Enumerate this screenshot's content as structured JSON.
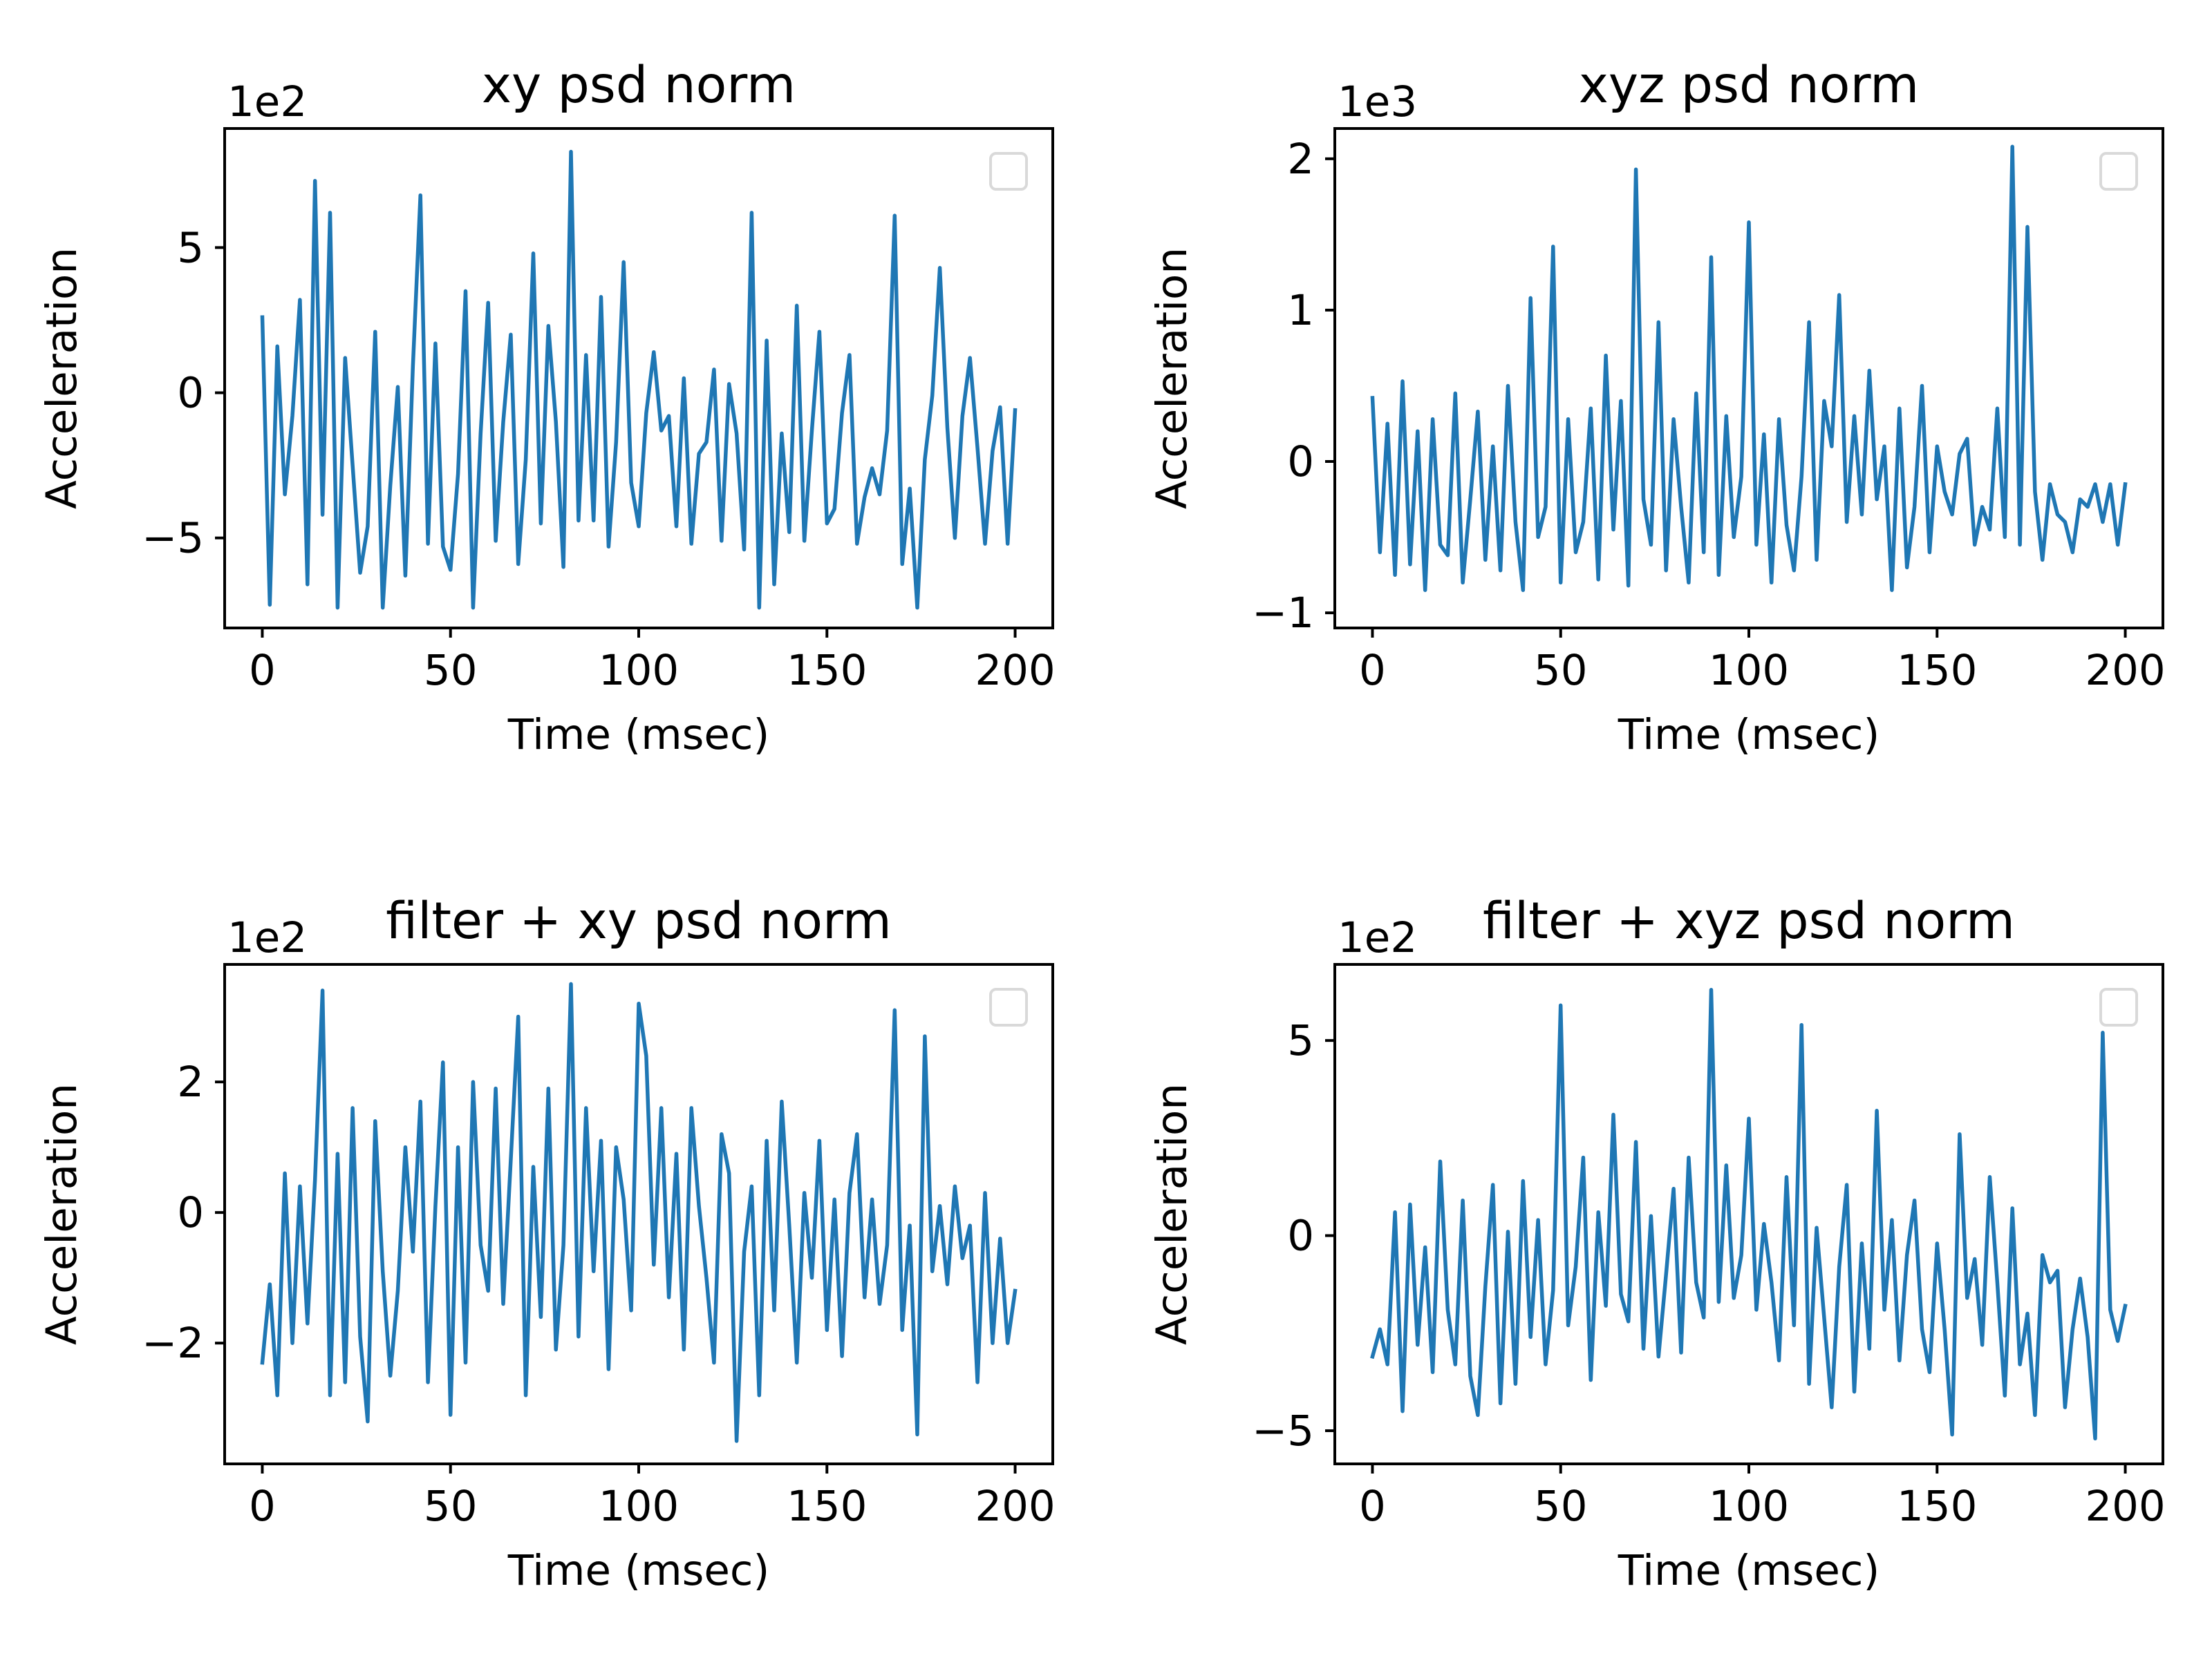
{
  "chart_data": [
    {
      "type": "line",
      "title": "xy psd norm",
      "xlabel": "Time (msec)",
      "ylabel": "Acceleration",
      "offset_text": "1e2",
      "xlim": [
        -10,
        210
      ],
      "ylim": [
        -8.1,
        9.1
      ],
      "xticks": [
        0,
        50,
        100,
        150,
        200
      ],
      "xtick_labels": [
        "0",
        "50",
        "100",
        "150",
        "200"
      ],
      "yticks": [
        -5,
        0,
        5
      ],
      "ytick_labels": [
        "−5",
        "0",
        "5"
      ],
      "legend": "top-right (empty)",
      "grid": false,
      "color": "#1f77b4",
      "x": [
        0,
        2,
        4,
        6,
        8,
        10,
        12,
        14,
        16,
        18,
        20,
        22,
        24,
        26,
        28,
        30,
        32,
        34,
        36,
        38,
        40,
        42,
        44,
        46,
        48,
        50,
        52,
        54,
        56,
        58,
        60,
        62,
        64,
        66,
        68,
        70,
        72,
        74,
        76,
        78,
        80,
        82,
        84,
        86,
        88,
        90,
        92,
        94,
        96,
        98,
        100,
        102,
        104,
        106,
        108,
        110,
        112,
        114,
        116,
        118,
        120,
        122,
        124,
        126,
        128,
        130,
        132,
        134,
        136,
        138,
        140,
        142,
        144,
        146,
        148,
        150,
        152,
        154,
        156,
        158,
        160,
        162,
        164,
        166,
        168,
        170,
        172,
        174,
        176,
        178,
        180,
        182,
        184,
        186,
        188,
        190,
        192,
        194,
        196,
        198,
        200
      ],
      "y": [
        2.6,
        -7.3,
        1.6,
        -3.5,
        -0.8,
        3.2,
        -6.6,
        7.3,
        -4.2,
        6.2,
        -7.4,
        1.2,
        -2.5,
        -6.2,
        -4.6,
        2.1,
        -7.4,
        -3.2,
        0.2,
        -6.3,
        0.9,
        6.8,
        -5.2,
        1.7,
        -5.3,
        -6.1,
        -2.8,
        3.5,
        -7.4,
        -1.4,
        3.1,
        -5.1,
        -1.0,
        2.0,
        -5.9,
        -2.3,
        4.8,
        -4.5,
        2.3,
        -1.0,
        -6.0,
        8.3,
        -4.4,
        1.3,
        -4.4,
        3.3,
        -5.3,
        -1.7,
        4.5,
        -3.1,
        -4.6,
        -0.7,
        1.4,
        -1.3,
        -0.8,
        -4.6,
        0.5,
        -5.2,
        -2.1,
        -1.7,
        0.8,
        -5.1,
        0.3,
        -1.4,
        -5.4,
        6.2,
        -7.4,
        1.8,
        -6.6,
        -1.4,
        -4.8,
        3.0,
        -5.1,
        -1.3,
        2.1,
        -4.5,
        -4.0,
        -0.7,
        1.3,
        -5.2,
        -3.6,
        -2.6,
        -3.5,
        -1.3,
        6.1,
        -5.9,
        -3.3,
        -7.4,
        -2.3,
        -0.1,
        4.3,
        -1.2,
        -5.0,
        -0.8,
        1.2,
        -1.9,
        -5.2,
        -2.0,
        -0.5,
        -5.2,
        -0.6
      ]
    },
    {
      "type": "line",
      "title": "xyz psd norm",
      "xlabel": "Time (msec)",
      "ylabel": "Acceleration",
      "offset_text": "1e3",
      "xlim": [
        -10,
        210
      ],
      "ylim": [
        -1.1,
        2.2
      ],
      "xticks": [
        0,
        50,
        100,
        150,
        200
      ],
      "xtick_labels": [
        "0",
        "50",
        "100",
        "150",
        "200"
      ],
      "yticks": [
        -1,
        0,
        1,
        2
      ],
      "ytick_labels": [
        "−1",
        "0",
        "1",
        "2"
      ],
      "legend": "top-right (empty)",
      "grid": false,
      "color": "#1f77b4",
      "x": [
        0,
        2,
        4,
        6,
        8,
        10,
        12,
        14,
        16,
        18,
        20,
        22,
        24,
        26,
        28,
        30,
        32,
        34,
        36,
        38,
        40,
        42,
        44,
        46,
        48,
        50,
        52,
        54,
        56,
        58,
        60,
        62,
        64,
        66,
        68,
        70,
        72,
        74,
        76,
        78,
        80,
        82,
        84,
        86,
        88,
        90,
        92,
        94,
        96,
        98,
        100,
        102,
        104,
        106,
        108,
        110,
        112,
        114,
        116,
        118,
        120,
        122,
        124,
        126,
        128,
        130,
        132,
        134,
        136,
        138,
        140,
        142,
        144,
        146,
        148,
        150,
        152,
        154,
        156,
        158,
        160,
        162,
        164,
        166,
        168,
        170,
        172,
        174,
        176,
        178,
        180,
        182,
        184,
        186,
        188,
        190,
        192,
        194,
        196,
        198,
        200
      ],
      "y": [
        0.42,
        -0.6,
        0.25,
        -0.75,
        0.53,
        -0.68,
        0.2,
        -0.85,
        0.28,
        -0.55,
        -0.62,
        0.45,
        -0.8,
        -0.25,
        0.33,
        -0.65,
        0.1,
        -0.72,
        0.5,
        -0.4,
        -0.85,
        1.08,
        -0.5,
        -0.3,
        1.42,
        -0.8,
        0.28,
        -0.6,
        -0.4,
        0.35,
        -0.78,
        0.7,
        -0.45,
        0.4,
        -0.82,
        1.93,
        -0.25,
        -0.55,
        0.92,
        -0.72,
        0.28,
        -0.3,
        -0.8,
        0.45,
        -0.6,
        1.35,
        -0.75,
        0.3,
        -0.5,
        -0.1,
        1.58,
        -0.55,
        0.18,
        -0.8,
        0.28,
        -0.42,
        -0.72,
        -0.1,
        0.92,
        -0.65,
        0.4,
        0.1,
        1.1,
        -0.4,
        0.3,
        -0.35,
        0.6,
        -0.25,
        0.1,
        -0.85,
        0.35,
        -0.7,
        -0.3,
        0.5,
        -0.6,
        0.1,
        -0.2,
        -0.35,
        0.05,
        0.15,
        -0.55,
        -0.3,
        -0.45,
        0.35,
        -0.5,
        2.08,
        -0.55,
        1.55,
        -0.2,
        -0.65,
        -0.15,
        -0.35,
        -0.4,
        -0.6,
        -0.25,
        -0.3,
        -0.15,
        -0.4,
        -0.15,
        -0.55,
        -0.15
      ]
    },
    {
      "type": "line",
      "title": "filter + xy psd norm",
      "xlabel": "Time (msec)",
      "ylabel": "Acceleration",
      "offset_text": "1e2",
      "xlim": [
        -10,
        210
      ],
      "ylim": [
        -3.85,
        3.8
      ],
      "xticks": [
        0,
        50,
        100,
        150,
        200
      ],
      "xtick_labels": [
        "0",
        "50",
        "100",
        "150",
        "200"
      ],
      "yticks": [
        -2,
        0,
        2
      ],
      "ytick_labels": [
        "−2",
        "0",
        "2"
      ],
      "legend": "top-right (empty)",
      "grid": false,
      "color": "#1f77b4",
      "x": [
        0,
        2,
        4,
        6,
        8,
        10,
        12,
        14,
        16,
        18,
        20,
        22,
        24,
        26,
        28,
        30,
        32,
        34,
        36,
        38,
        40,
        42,
        44,
        46,
        48,
        50,
        52,
        54,
        56,
        58,
        60,
        62,
        64,
        66,
        68,
        70,
        72,
        74,
        76,
        78,
        80,
        82,
        84,
        86,
        88,
        90,
        92,
        94,
        96,
        98,
        100,
        102,
        104,
        106,
        108,
        110,
        112,
        114,
        116,
        118,
        120,
        122,
        124,
        126,
        128,
        130,
        132,
        134,
        136,
        138,
        140,
        142,
        144,
        146,
        148,
        150,
        152,
        154,
        156,
        158,
        160,
        162,
        164,
        166,
        168,
        170,
        172,
        174,
        176,
        178,
        180,
        182,
        184,
        186,
        188,
        190,
        192,
        194,
        196,
        198,
        200
      ],
      "y": [
        -2.3,
        -1.1,
        -2.8,
        0.6,
        -2.0,
        0.4,
        -1.7,
        0.5,
        3.4,
        -2.8,
        0.9,
        -2.6,
        1.6,
        -1.9,
        -3.2,
        1.4,
        -0.9,
        -2.5,
        -1.2,
        1.0,
        -0.6,
        1.7,
        -2.6,
        0.1,
        2.3,
        -3.1,
        1.0,
        -2.3,
        2.0,
        -0.5,
        -1.2,
        1.9,
        -1.4,
        0.8,
        3.0,
        -2.8,
        0.7,
        -1.6,
        1.9,
        -2.1,
        -0.5,
        3.5,
        -1.9,
        1.6,
        -0.9,
        1.1,
        -2.4,
        1.0,
        0.2,
        -1.5,
        3.2,
        2.4,
        -0.8,
        1.6,
        -1.3,
        0.9,
        -2.1,
        1.6,
        0.1,
        -1.0,
        -2.3,
        1.2,
        0.6,
        -3.5,
        -0.6,
        0.4,
        -2.8,
        1.1,
        -1.5,
        1.7,
        -0.2,
        -2.3,
        0.3,
        -1.0,
        1.1,
        -1.8,
        0.2,
        -2.2,
        0.3,
        1.2,
        -1.3,
        0.2,
        -1.4,
        -0.5,
        3.1,
        -1.8,
        -0.2,
        -3.4,
        2.7,
        -0.9,
        0.1,
        -1.1,
        0.4,
        -0.7,
        -0.2,
        -2.6,
        0.3,
        -2.0,
        -0.4,
        -2.0,
        -1.2
      ]
    },
    {
      "type": "line",
      "title": "filter + xyz psd norm",
      "xlabel": "Time (msec)",
      "ylabel": "Acceleration",
      "offset_text": "1e2",
      "xlim": [
        -10,
        210
      ],
      "ylim": [
        -5.85,
        6.95
      ],
      "xticks": [
        0,
        50,
        100,
        150,
        200
      ],
      "xtick_labels": [
        "0",
        "50",
        "100",
        "150",
        "200"
      ],
      "yticks": [
        -5,
        0,
        5
      ],
      "ytick_labels": [
        "−5",
        "0",
        "5"
      ],
      "legend": "top-right (empty)",
      "grid": false,
      "color": "#1f77b4",
      "x": [
        0,
        2,
        4,
        6,
        8,
        10,
        12,
        14,
        16,
        18,
        20,
        22,
        24,
        26,
        28,
        30,
        32,
        34,
        36,
        38,
        40,
        42,
        44,
        46,
        48,
        50,
        52,
        54,
        56,
        58,
        60,
        62,
        64,
        66,
        68,
        70,
        72,
        74,
        76,
        78,
        80,
        82,
        84,
        86,
        88,
        90,
        92,
        94,
        96,
        98,
        100,
        102,
        104,
        106,
        108,
        110,
        112,
        114,
        116,
        118,
        120,
        122,
        124,
        126,
        128,
        130,
        132,
        134,
        136,
        138,
        140,
        142,
        144,
        146,
        148,
        150,
        152,
        154,
        156,
        158,
        160,
        162,
        164,
        166,
        168,
        170,
        172,
        174,
        176,
        178,
        180,
        182,
        184,
        186,
        188,
        190,
        192,
        194,
        196,
        198,
        200
      ],
      "y": [
        -3.1,
        -2.4,
        -3.3,
        0.6,
        -4.5,
        0.8,
        -2.8,
        -0.3,
        -3.5,
        1.9,
        -1.9,
        -3.3,
        0.9,
        -3.6,
        -4.6,
        -1.3,
        1.3,
        -4.3,
        0.1,
        -3.8,
        1.4,
        -2.6,
        0.4,
        -3.3,
        -1.4,
        5.9,
        -2.3,
        -0.8,
        2.0,
        -3.7,
        0.6,
        -1.8,
        3.1,
        -1.5,
        -2.2,
        2.4,
        -2.9,
        0.5,
        -3.1,
        -1.0,
        1.2,
        -3.0,
        2.0,
        -1.2,
        -2.1,
        6.3,
        -1.7,
        1.8,
        -1.6,
        -0.5,
        3.0,
        -1.9,
        0.3,
        -1.2,
        -3.2,
        1.5,
        -2.3,
        5.4,
        -3.8,
        0.2,
        -2.1,
        -4.4,
        -0.8,
        1.3,
        -4.0,
        -0.2,
        -2.9,
        3.2,
        -1.9,
        0.4,
        -3.2,
        -0.5,
        0.9,
        -2.4,
        -3.5,
        -0.2,
        -2.4,
        -5.1,
        2.6,
        -1.6,
        -0.6,
        -2.8,
        1.5,
        -1.2,
        -4.1,
        0.7,
        -3.3,
        -2.0,
        -4.6,
        -0.5,
        -1.2,
        -0.9,
        -4.4,
        -2.4,
        -1.1,
        -2.6,
        -5.2,
        5.2,
        -1.9,
        -2.7,
        -1.8
      ]
    }
  ]
}
